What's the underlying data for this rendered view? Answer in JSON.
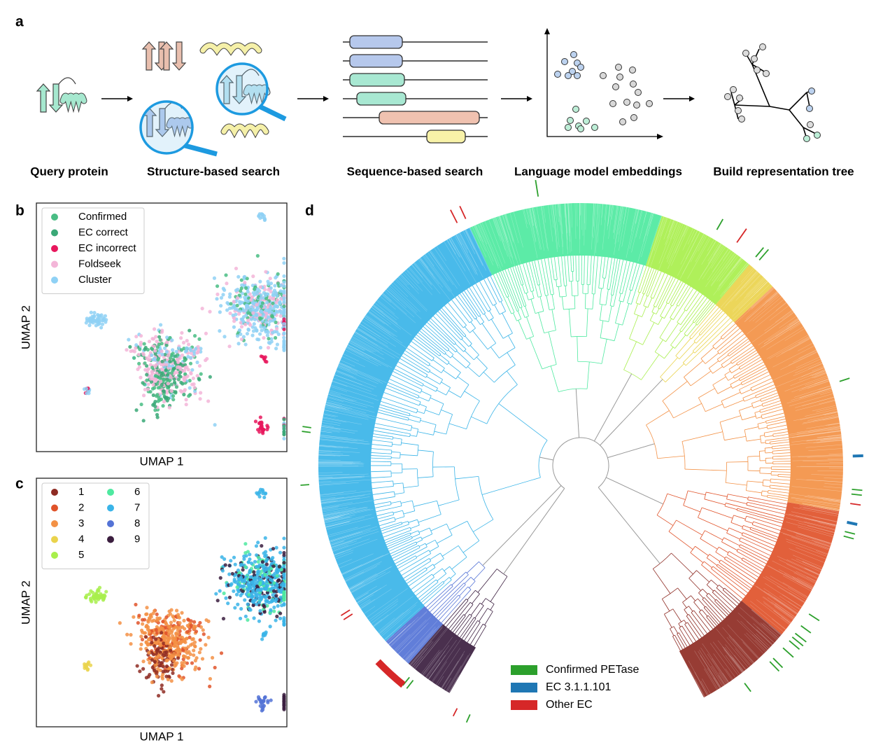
{
  "panels": {
    "a": {
      "label": "a",
      "steps": [
        "Query protein",
        "Structure-based search",
        "Sequence-based search",
        "Language model embeddings",
        "Build representation tree"
      ]
    },
    "b": {
      "label": "b",
      "xlabel": "UMAP 1",
      "ylabel": "UMAP 2",
      "legend": [
        {
          "name": "Confirmed",
          "color": "#49bd84"
        },
        {
          "name": "EC correct",
          "color": "#3aa877"
        },
        {
          "name": "EC incorrect",
          "color": "#e8175d"
        },
        {
          "name": "Foldseek",
          "color": "#f3b5d8"
        },
        {
          "name": "Cluster",
          "color": "#8fd1f5"
        }
      ]
    },
    "c": {
      "label": "c",
      "xlabel": "UMAP 1",
      "ylabel": "UMAP 2",
      "legend": [
        {
          "name": "1",
          "color": "#8e2b23"
        },
        {
          "name": "2",
          "color": "#e0532a"
        },
        {
          "name": "3",
          "color": "#f39145"
        },
        {
          "name": "4",
          "color": "#ead34c"
        },
        {
          "name": "5",
          "color": "#a8ef4c"
        },
        {
          "name": "6",
          "color": "#4ee9a0"
        },
        {
          "name": "7",
          "color": "#3ab4e8"
        },
        {
          "name": "8",
          "color": "#5473d6"
        },
        {
          "name": "9",
          "color": "#3b1e3f"
        }
      ]
    },
    "d": {
      "label": "d",
      "legend": [
        {
          "name": "Confirmed PETase",
          "color": "#2ca02c"
        },
        {
          "name": "EC 3.1.1.101",
          "color": "#1f77b4"
        },
        {
          "name": "Other EC",
          "color": "#d62728"
        }
      ]
    }
  }
}
